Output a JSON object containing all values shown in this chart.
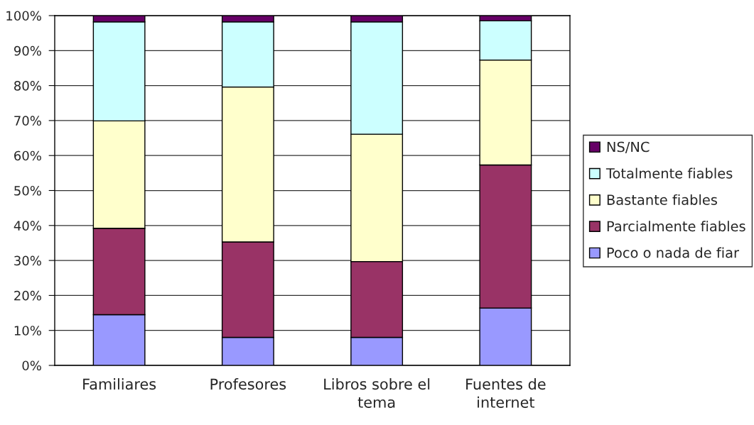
{
  "chart_data": {
    "type": "bar",
    "stacked": true,
    "categories": [
      "Familiares",
      "Profesores",
      "Libros sobre el\ntema",
      "Fuentes de\ninternet"
    ],
    "series": [
      {
        "name": "Poco o nada de fiar",
        "color": "#9999ff",
        "values": [
          14.5,
          8.0,
          8.0,
          16.4
        ]
      },
      {
        "name": "Parcialmente fiables",
        "color": "#993366",
        "values": [
          24.7,
          27.3,
          21.7,
          40.9
        ]
      },
      {
        "name": "Bastante fiables",
        "color": "#ffffcc",
        "values": [
          30.7,
          44.3,
          36.4,
          30.0
        ]
      },
      {
        "name": "Totalmente fiables",
        "color": "#ccffff",
        "values": [
          28.3,
          18.6,
          32.1,
          11.2
        ]
      },
      {
        "name": "NS/NC",
        "color": "#660066",
        "values": [
          1.8,
          1.8,
          1.8,
          1.5
        ]
      }
    ],
    "ylim": [
      0,
      100
    ],
    "yticks": [
      {
        "value": 0,
        "label": "0%"
      },
      {
        "value": 10,
        "label": "10%"
      },
      {
        "value": 20,
        "label": "20%"
      },
      {
        "value": 30,
        "label": "30%"
      },
      {
        "value": 40,
        "label": "40%"
      },
      {
        "value": 50,
        "label": "50%"
      },
      {
        "value": 60,
        "label": "60%"
      },
      {
        "value": 70,
        "label": "70%"
      },
      {
        "value": 80,
        "label": "80%"
      },
      {
        "value": 90,
        "label": "90%"
      },
      {
        "value": 100,
        "label": "100%"
      }
    ],
    "grid": "y",
    "legend": "right"
  }
}
